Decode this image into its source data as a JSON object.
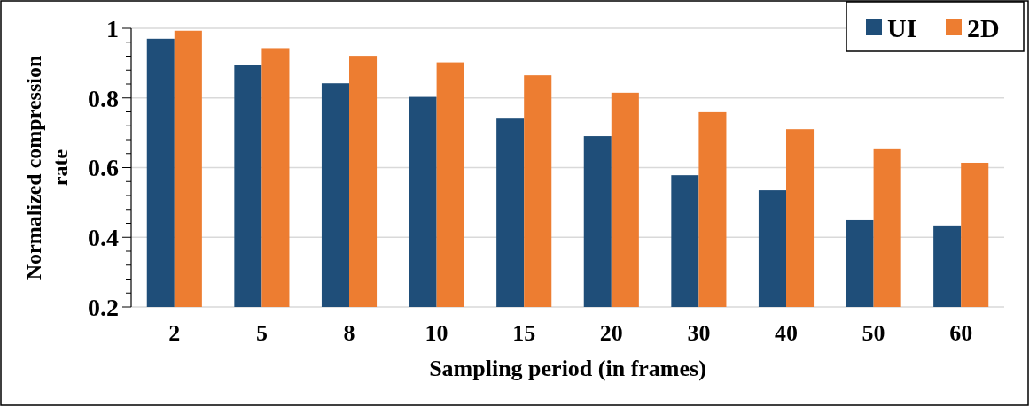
{
  "chart_data": {
    "type": "bar",
    "xlabel": "Sampling period (in frames)",
    "ylabel": "Normalized compression rate",
    "categories": [
      "2",
      "5",
      "8",
      "10",
      "15",
      "20",
      "30",
      "40",
      "50",
      "60"
    ],
    "series": [
      {
        "name": "UI",
        "color": "#1f4e79",
        "values": [
          0.97,
          0.895,
          0.842,
          0.803,
          0.743,
          0.69,
          0.578,
          0.535,
          0.449,
          0.434
        ]
      },
      {
        "name": "2D",
        "color": "#ed7d31",
        "values": [
          0.993,
          0.943,
          0.921,
          0.902,
          0.865,
          0.815,
          0.759,
          0.71,
          0.655,
          0.614
        ]
      }
    ],
    "ylim": [
      0.2,
      1
    ],
    "yticks": [
      0.2,
      {
        "value": 0.24,
        "label": null
      },
      {
        "value": 0.28,
        "label": null
      },
      {
        "value": 0.32,
        "label": null
      },
      {
        "value": 0.36,
        "label": null
      },
      0.4,
      {
        "value": 0.44,
        "label": null
      },
      {
        "value": 0.48,
        "label": null
      },
      {
        "value": 0.52,
        "label": null
      },
      {
        "value": 0.56,
        "label": null
      },
      0.6,
      {
        "value": 0.64,
        "label": null
      },
      {
        "value": 0.68,
        "label": null
      },
      {
        "value": 0.72,
        "label": null
      },
      {
        "value": 0.76,
        "label": null
      },
      0.8,
      {
        "value": 0.84,
        "label": null
      },
      {
        "value": 0.88,
        "label": null
      },
      {
        "value": 0.92,
        "label": null
      },
      {
        "value": 0.96,
        "label": null
      },
      1
    ],
    "grid": "y",
    "legend": "top right"
  }
}
